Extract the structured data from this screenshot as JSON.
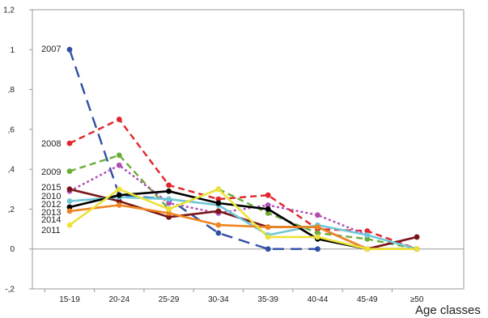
{
  "chart_data": {
    "type": "line",
    "title": "",
    "xlabel": "Age classes",
    "ylabel": "",
    "categories": [
      "15-19",
      "20-24",
      "25-29",
      "30-34",
      "35-39",
      "40-44",
      "45-49",
      "≥50"
    ],
    "ylim": [
      -0.2,
      1.2
    ],
    "yticks": [
      -0.2,
      0,
      0.2,
      0.4,
      0.6,
      0.8,
      1,
      1.2
    ],
    "ytick_labels": [
      "-,2",
      "0",
      ",2",
      ",4",
      ",6",
      ",8",
      "1",
      "1,2"
    ],
    "grid": false,
    "legend": "inline-left",
    "series": [
      {
        "name": "2007",
        "color": "#2f4fa3",
        "dash": "long",
        "values": [
          1.0,
          0.27,
          0.25,
          0.08,
          0.0,
          0.0,
          null,
          null
        ]
      },
      {
        "name": "2008",
        "color": "#e3242b",
        "dash": "dash",
        "values": [
          0.53,
          0.65,
          0.32,
          0.25,
          0.27,
          0.1,
          0.09,
          0.0
        ]
      },
      {
        "name": "2009",
        "color": "#6aae38",
        "dash": "dash",
        "values": [
          0.39,
          0.47,
          0.2,
          0.3,
          0.18,
          0.08,
          0.05,
          0.0
        ]
      },
      {
        "name": "2015",
        "color": "#b04fb0",
        "dash": "dot",
        "values": [
          0.29,
          0.42,
          0.23,
          0.18,
          0.22,
          0.17,
          0.07,
          0.0
        ]
      },
      {
        "name": "2010",
        "color": "#7b1416",
        "dash": "solid",
        "values": [
          0.3,
          0.24,
          0.16,
          0.19,
          0.11,
          0.11,
          0.0,
          0.06
        ]
      },
      {
        "name": "2012",
        "color": "#6ec8d8",
        "dash": "solid",
        "values": [
          0.24,
          0.26,
          0.25,
          0.22,
          0.07,
          0.12,
          0.07,
          0.0
        ]
      },
      {
        "name": "2013",
        "color": "#000000",
        "dash": "solid",
        "values": [
          0.21,
          0.27,
          0.29,
          0.23,
          0.2,
          0.05,
          0.0,
          0.0
        ]
      },
      {
        "name": "2014",
        "color": "#ee8522",
        "dash": "solid",
        "values": [
          0.19,
          0.22,
          0.18,
          0.12,
          0.11,
          0.11,
          0.0,
          0.0
        ]
      },
      {
        "name": "2011",
        "color": "#ece33a",
        "dash": "solid",
        "values": [
          0.12,
          0.3,
          0.2,
          0.3,
          0.06,
          0.06,
          0.0,
          0.0
        ]
      }
    ],
    "series_labels": [
      "2007",
      "2008",
      "2009",
      "2015",
      "2010",
      "2012",
      "2013",
      "2014",
      "2011"
    ]
  }
}
